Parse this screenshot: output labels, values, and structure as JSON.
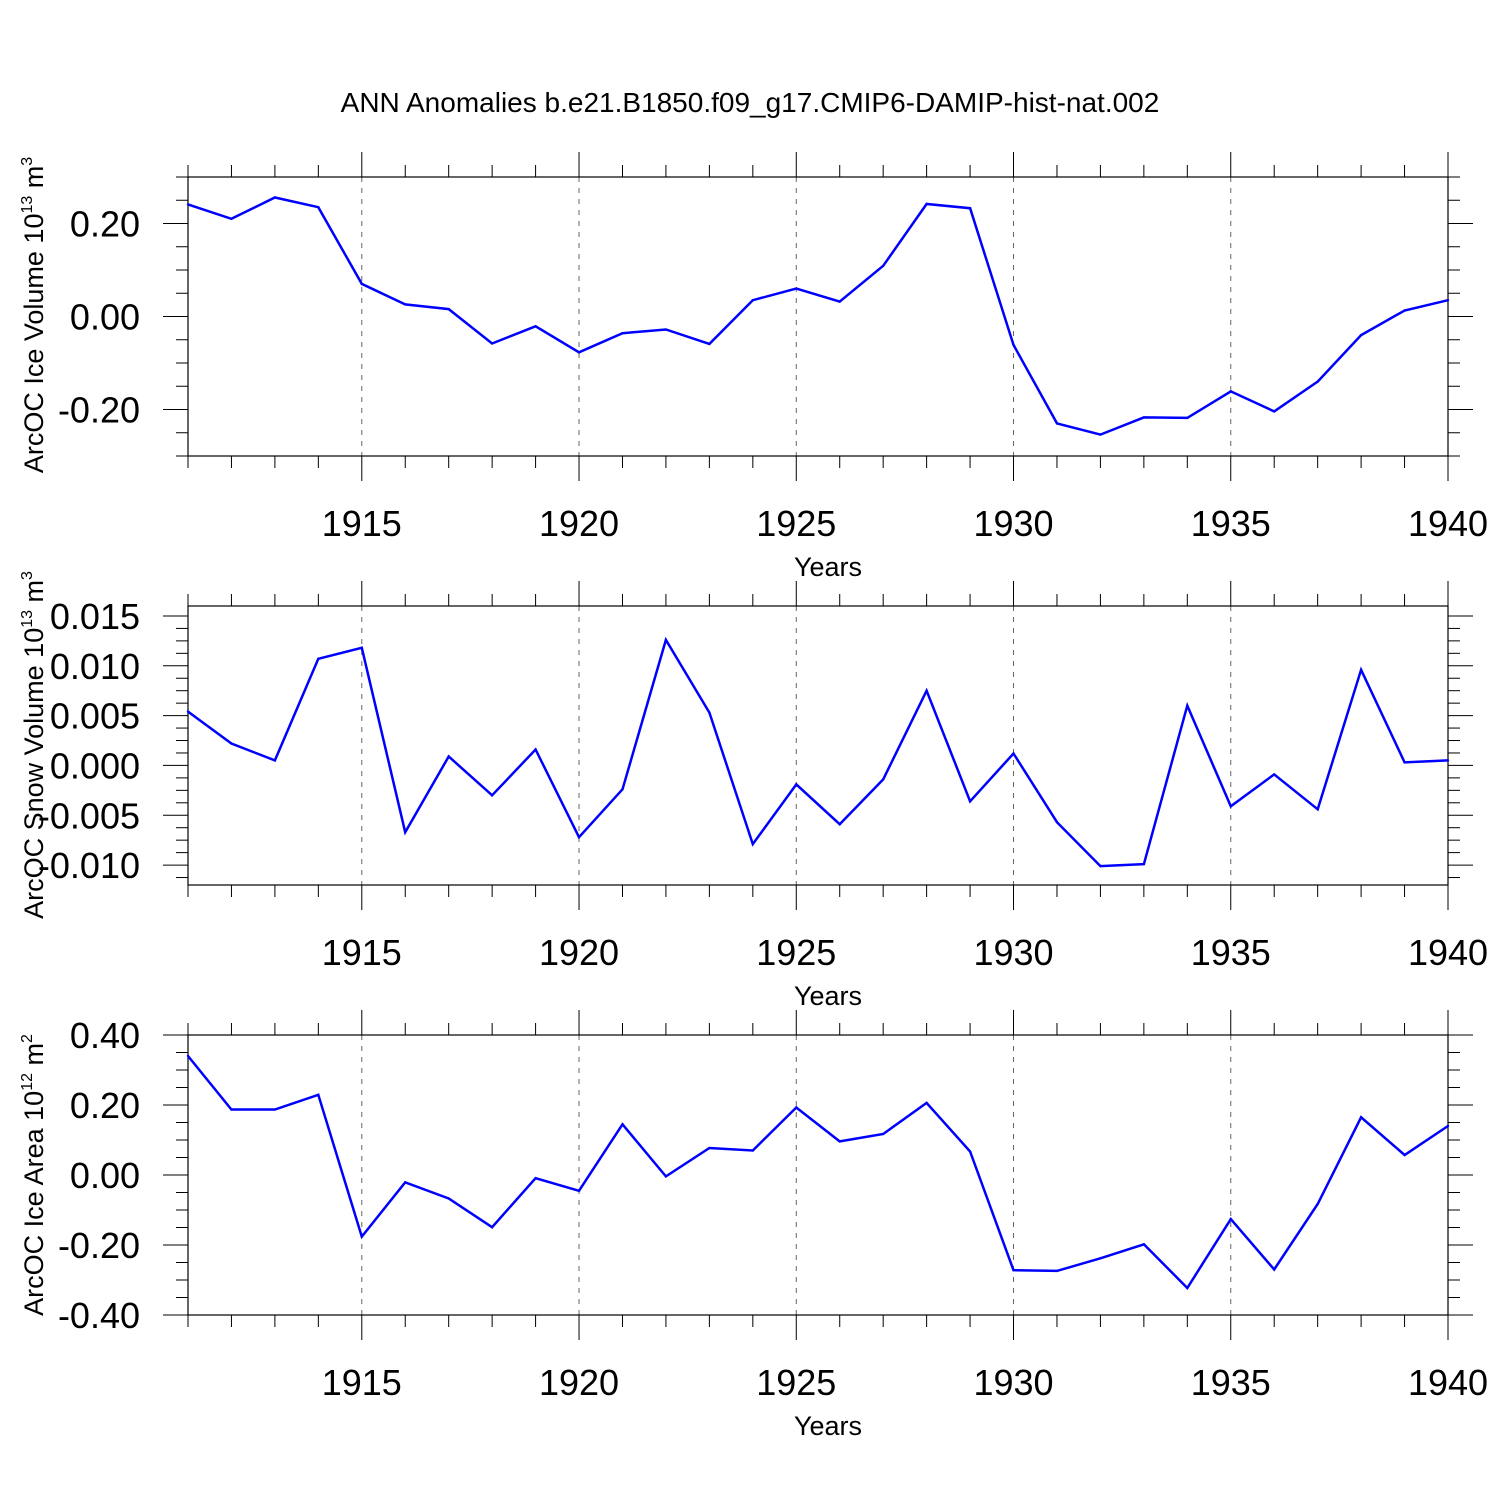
{
  "title": "ANN Anomalies b.e21.B1850.f09_g17.CMIP6-DAMIP-hist-nat.002",
  "line_color": "#0000ff",
  "chart_data": [
    {
      "type": "line",
      "ylabel": "ArcOC Ice Volume 10",
      "ylabel_exp": "13",
      "ylabel_unit": " m",
      "ylabel_unit_exp": "3",
      "xlabel": "Years",
      "xlim": [
        1911,
        1940
      ],
      "ylim": [
        -0.3,
        0.3
      ],
      "yticks": [
        -0.2,
        0.0,
        0.2
      ],
      "ytick_labels": [
        "-0.20",
        "0.00",
        "0.20"
      ],
      "xticks": [
        1915,
        1920,
        1925,
        1930,
        1935,
        1940
      ],
      "xtick_labels": [
        "1915",
        "1920",
        "1925",
        "1930",
        "1935",
        "1940"
      ],
      "x": [
        1911,
        1912,
        1913,
        1914,
        1915,
        1916,
        1917,
        1918,
        1919,
        1920,
        1921,
        1922,
        1923,
        1924,
        1925,
        1926,
        1927,
        1928,
        1929,
        1930,
        1931,
        1932,
        1933,
        1934,
        1935,
        1936,
        1937,
        1938,
        1939,
        1940
      ],
      "values": [
        0.241,
        0.21,
        0.256,
        0.235,
        0.07,
        0.026,
        0.016,
        -0.058,
        -0.021,
        -0.077,
        -0.036,
        -0.028,
        -0.059,
        0.035,
        0.06,
        0.032,
        0.109,
        0.242,
        0.233,
        -0.061,
        -0.23,
        -0.254,
        -0.217,
        -0.218,
        -0.161,
        -0.204,
        -0.14,
        -0.04,
        0.013,
        0.035
      ]
    },
    {
      "type": "line",
      "ylabel": "ArcOC Snow Volume 10",
      "ylabel_exp": "13",
      "ylabel_unit": " m",
      "ylabel_unit_exp": "3",
      "xlabel": "Years",
      "xlim": [
        1911,
        1940
      ],
      "ylim": [
        -0.012,
        0.016
      ],
      "yticks": [
        -0.01,
        -0.005,
        0.0,
        0.005,
        0.01,
        0.015
      ],
      "ytick_labels": [
        "-0.010",
        "-0.005",
        "0.000",
        "0.005",
        "0.010",
        "0.015"
      ],
      "xticks": [
        1915,
        1920,
        1925,
        1930,
        1935,
        1940
      ],
      "xtick_labels": [
        "1915",
        "1920",
        "1925",
        "1930",
        "1935",
        "1940"
      ],
      "x": [
        1911,
        1912,
        1913,
        1914,
        1915,
        1916,
        1917,
        1918,
        1919,
        1920,
        1921,
        1922,
        1923,
        1924,
        1925,
        1926,
        1927,
        1928,
        1929,
        1930,
        1931,
        1932,
        1933,
        1934,
        1935,
        1936,
        1937,
        1938,
        1939,
        1940
      ],
      "values": [
        0.0054,
        0.0022,
        0.0005,
        0.0107,
        0.0118,
        -0.0067,
        0.0009,
        -0.003,
        0.0016,
        -0.0072,
        -0.0024,
        0.0126,
        0.0053,
        -0.0079,
        -0.0019,
        -0.0059,
        -0.0014,
        0.0075,
        -0.0036,
        0.0012,
        -0.0057,
        -0.0101,
        -0.0099,
        0.006,
        -0.0041,
        -0.0009,
        -0.0044,
        0.0096,
        0.0003,
        0.0005
      ]
    },
    {
      "type": "line",
      "ylabel": "ArcOC Ice Area 10",
      "ylabel_exp": "12",
      "ylabel_unit": " m",
      "ylabel_unit_exp": "2",
      "xlabel": "Years",
      "xlim": [
        1911,
        1940
      ],
      "ylim": [
        -0.4,
        0.4
      ],
      "yticks": [
        -0.4,
        -0.2,
        0.0,
        0.2,
        0.4
      ],
      "ytick_labels": [
        "-0.40",
        "-0.20",
        "0.00",
        "0.20",
        "0.40"
      ],
      "xticks": [
        1915,
        1920,
        1925,
        1930,
        1935,
        1940
      ],
      "xtick_labels": [
        "1915",
        "1920",
        "1925",
        "1930",
        "1935",
        "1940"
      ],
      "x": [
        1911,
        1912,
        1913,
        1914,
        1915,
        1916,
        1917,
        1918,
        1919,
        1920,
        1921,
        1922,
        1923,
        1924,
        1925,
        1926,
        1927,
        1928,
        1929,
        1930,
        1931,
        1932,
        1933,
        1934,
        1935,
        1936,
        1937,
        1938,
        1939,
        1940
      ],
      "values": [
        0.34,
        0.187,
        0.187,
        0.229,
        -0.176,
        -0.021,
        -0.067,
        -0.149,
        -0.009,
        -0.045,
        0.145,
        -0.004,
        0.077,
        0.07,
        0.193,
        0.096,
        0.117,
        0.206,
        0.067,
        -0.272,
        -0.274,
        -0.238,
        -0.198,
        -0.323,
        -0.126,
        -0.27,
        -0.083,
        0.165,
        0.057,
        0.14
      ]
    }
  ]
}
